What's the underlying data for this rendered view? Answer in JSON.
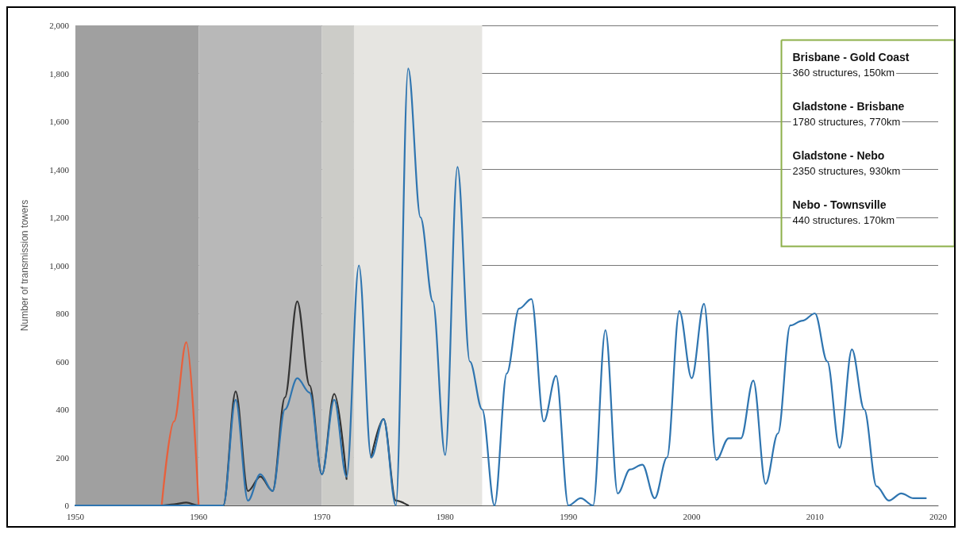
{
  "chart_data": {
    "type": "line",
    "ylabel": "Number of transmission towers",
    "x": [
      1950,
      1951,
      1952,
      1953,
      1954,
      1955,
      1956,
      1957,
      1958,
      1959,
      1960,
      1961,
      1962,
      1963,
      1964,
      1965,
      1966,
      1967,
      1968,
      1969,
      1970,
      1971,
      1972,
      1973,
      1974,
      1975,
      1976,
      1977,
      1978,
      1979,
      1980,
      1981,
      1982,
      1983,
      1984,
      1985,
      1986,
      1987,
      1988,
      1989,
      1990,
      1991,
      1992,
      1993,
      1994,
      1995,
      1996,
      1997,
      1998,
      1999,
      2000,
      2001,
      2002,
      2003,
      2004,
      2005,
      2006,
      2007,
      2008,
      2009,
      2010,
      2011,
      2012,
      2013,
      2014,
      2015,
      2016,
      2017,
      2018,
      2019
    ],
    "series": [
      {
        "color": "#e8603c",
        "x": [
          1957,
          1958,
          1959,
          1960
        ],
        "values": [
          0,
          350,
          680,
          0
        ]
      },
      {
        "color": "#333333",
        "x": [
          1950,
          1951,
          1952,
          1953,
          1954,
          1955,
          1956,
          1957,
          1958,
          1959,
          1960,
          1961,
          1962,
          1963,
          1964,
          1965,
          1966,
          1967,
          1968,
          1969,
          1970,
          1971,
          1972,
          1973,
          1974,
          1975,
          1976,
          1977
        ],
        "values": [
          0,
          0,
          0,
          0,
          0,
          0,
          0,
          0,
          5,
          12,
          0,
          0,
          0,
          475,
          60,
          120,
          60,
          450,
          850,
          500,
          130,
          465,
          110,
          null,
          200,
          360,
          20,
          0
        ]
      },
      {
        "color": "#2f75b0",
        "values": [
          0,
          0,
          0,
          0,
          0,
          0,
          0,
          0,
          0,
          0,
          0,
          0,
          0,
          440,
          20,
          130,
          60,
          400,
          530,
          470,
          130,
          440,
          120,
          1000,
          200,
          360,
          0,
          1820,
          1200,
          850,
          210,
          1410,
          600,
          400,
          0,
          550,
          820,
          860,
          350,
          540,
          0,
          30,
          0,
          730,
          50,
          150,
          170,
          30,
          200,
          810,
          530,
          840,
          190,
          280,
          280,
          520,
          90,
          300,
          750,
          770,
          800,
          600,
          240,
          650,
          400,
          80,
          20,
          50,
          30,
          30
        ]
      }
    ],
    "xlim": [
      1950,
      2020
    ],
    "xticks": [
      1950,
      1960,
      1970,
      1980,
      1990,
      2000,
      2010,
      2020
    ],
    "ylim": [
      0,
      2000
    ],
    "yticks": [
      0,
      200,
      400,
      600,
      800,
      {
        "value": 1000,
        "label": "1,000"
      },
      {
        "value": 1200,
        "label": "1,200"
      },
      {
        "value": 1400,
        "label": "1,400"
      },
      {
        "value": 1600,
        "label": "1,600"
      },
      {
        "value": 1800,
        "label": "1,800"
      },
      {
        "value": 2000,
        "label": "2,000"
      }
    ],
    "bands": [
      {
        "axis": "x",
        "from": 1950,
        "to": 1960,
        "color": "#a0a0a0"
      },
      {
        "axis": "x",
        "from": 1960,
        "to": 1970,
        "color": "#b8b8b8"
      },
      {
        "axis": "x",
        "from": 1970,
        "to": 1972.6,
        "color": "#ccccc8"
      },
      {
        "axis": "x",
        "from": 1972.6,
        "to": 1983,
        "color": "#e6e5e1"
      }
    ],
    "annotations": [
      "Brisbane - Gold Coast",
      "360 structures, 150km",
      "Gladstone - Brisbane",
      "1780 structures, 770km",
      "Gladstone - Nebo",
      "2350 structures, 930km",
      "Nebo - Townsville",
      "440 structures. 170km"
    ],
    "grid": "y",
    "marker": "none",
    "line_style": "solid"
  }
}
